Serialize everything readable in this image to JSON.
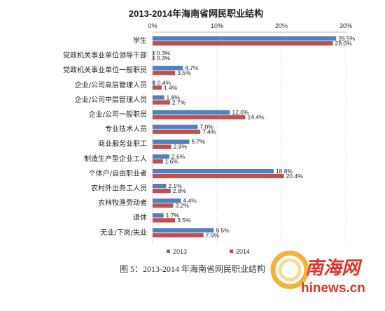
{
  "chart_data": {
    "type": "bar",
    "orientation": "horizontal",
    "title": "2013-2014年海南省网民职业结构",
    "categories": [
      "学生",
      "党政机关事业单位领导干部",
      "党政机关事业单位一般职员",
      "企业/公司高层管理人员",
      "企业/公司中层管理人员",
      "企业/公司一般职员",
      "专业技术人员",
      "商业服务业职工",
      "制造生产型企业工人",
      "个体户/自由职业者",
      "农村外出务工人员",
      "农林牧渔劳动者",
      "退休",
      "无业/下岗/失业"
    ],
    "series": [
      {
        "name": "2013",
        "color": "#4f81bd",
        "values": [
          28.5,
          0.3,
          4.7,
          0.4,
          1.8,
          12.0,
          7.0,
          5.7,
          2.6,
          18.8,
          2.1,
          4.4,
          1.7,
          9.5
        ],
        "labels": [
          "28.5%",
          "0.3%",
          "4.7%",
          "0.4%",
          "1.8%",
          "12.0%",
          "7.0%",
          "5.7%",
          "2.6%",
          "18.8%",
          "2.1%",
          "4.4%",
          "1.7%",
          "9.5%"
        ]
      },
      {
        "name": "2014",
        "color": "#c0504d",
        "values": [
          28.0,
          0.3,
          3.5,
          1.4,
          2.7,
          14.4,
          7.4,
          2.9,
          1.6,
          20.4,
          2.8,
          3.2,
          3.5,
          7.9
        ],
        "labels": [
          "28.0%",
          "0.3%",
          "3.5%",
          "1.4%",
          "2.7%",
          "14.4%",
          "7.4%",
          "2.9%",
          "1.6%",
          "20.4%",
          "2.8%",
          "3.2%",
          "3.5%",
          "7.9%"
        ]
      }
    ],
    "xlim": [
      0,
      30
    ],
    "xticks": [
      "0%",
      "10%",
      "20%",
      "30%"
    ],
    "xtick_values": [
      0,
      10,
      20,
      30
    ],
    "axis_position": "top",
    "grid": true,
    "legend_position": "bottom"
  },
  "caption": "图 5：2013-2014 年海南省网民职业结构",
  "watermark": {
    "cn": "南海网",
    "en": "hinews.cn",
    "color": "#e2332b",
    "ring_colors": [
      "#f3b23a",
      "#f7d9a0"
    ]
  }
}
